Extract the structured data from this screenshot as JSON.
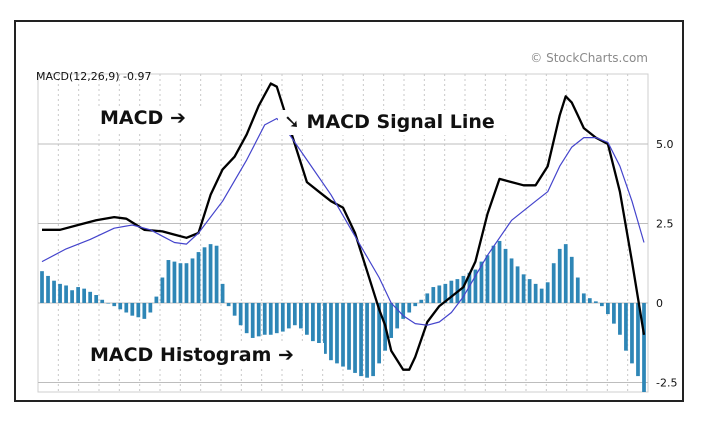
{
  "chart_data": {
    "type": "line",
    "header_label": "MACD(12,26,9) -0.97",
    "credit": "© StockCharts.com",
    "ylim": [
      -2.8,
      7.2
    ],
    "yticks": [
      {
        "value": 5.0,
        "label": "5.0"
      },
      {
        "value": 2.5,
        "label": "2.5"
      },
      {
        "value": 0,
        "label": "0"
      },
      {
        "value": -2.5,
        "label": "-2.5"
      }
    ],
    "grid": true,
    "num_periods": 100,
    "annotations": [
      {
        "key": "macd",
        "text": "MACD ➔"
      },
      {
        "key": "signal",
        "text": "➘ MACD Signal Line"
      },
      {
        "key": "histogram",
        "text": "MACD Histogram ➔"
      }
    ],
    "series": [
      {
        "name": "MACD",
        "color": "#000000",
        "points": [
          [
            0,
            2.3
          ],
          [
            3,
            2.3
          ],
          [
            6,
            2.45
          ],
          [
            9,
            2.6
          ],
          [
            12,
            2.7
          ],
          [
            14,
            2.65
          ],
          [
            17,
            2.3
          ],
          [
            20,
            2.25
          ],
          [
            22,
            2.15
          ],
          [
            24,
            2.05
          ],
          [
            26,
            2.2
          ],
          [
            28,
            3.4
          ],
          [
            30,
            4.2
          ],
          [
            32,
            4.6
          ],
          [
            34,
            5.3
          ],
          [
            36,
            6.2
          ],
          [
            38,
            6.9
          ],
          [
            39,
            6.8
          ],
          [
            40,
            6.2
          ],
          [
            42,
            5.0
          ],
          [
            44,
            3.8
          ],
          [
            46,
            3.5
          ],
          [
            48,
            3.2
          ],
          [
            50,
            3.0
          ],
          [
            52,
            2.2
          ],
          [
            54,
            1.0
          ],
          [
            56,
            -0.2
          ],
          [
            57,
            -0.7
          ],
          [
            58,
            -1.5
          ],
          [
            60,
            -2.1
          ],
          [
            61,
            -2.1
          ],
          [
            62,
            -1.7
          ],
          [
            64,
            -0.6
          ],
          [
            66,
            -0.1
          ],
          [
            68,
            0.2
          ],
          [
            70,
            0.5
          ],
          [
            72,
            1.3
          ],
          [
            74,
            2.8
          ],
          [
            76,
            3.9
          ],
          [
            78,
            3.8
          ],
          [
            80,
            3.7
          ],
          [
            82,
            3.7
          ],
          [
            84,
            4.3
          ],
          [
            86,
            5.9
          ],
          [
            87,
            6.5
          ],
          [
            88,
            6.3
          ],
          [
            89,
            5.9
          ],
          [
            90,
            5.5
          ],
          [
            92,
            5.2
          ],
          [
            94,
            5.0
          ],
          [
            96,
            3.5
          ],
          [
            98,
            1.3
          ],
          [
            100,
            -1.0
          ]
        ]
      },
      {
        "name": "MACD Signal Line",
        "color": "#4444cc",
        "points": [
          [
            0,
            1.3
          ],
          [
            4,
            1.7
          ],
          [
            8,
            2.0
          ],
          [
            12,
            2.35
          ],
          [
            15,
            2.45
          ],
          [
            18,
            2.3
          ],
          [
            20,
            2.1
          ],
          [
            22,
            1.9
          ],
          [
            24,
            1.85
          ],
          [
            26,
            2.2
          ],
          [
            30,
            3.2
          ],
          [
            34,
            4.5
          ],
          [
            37,
            5.6
          ],
          [
            39,
            5.8
          ],
          [
            40,
            5.6
          ],
          [
            44,
            4.5
          ],
          [
            48,
            3.4
          ],
          [
            52,
            2.1
          ],
          [
            56,
            0.8
          ],
          [
            58,
            0.0
          ],
          [
            60,
            -0.4
          ],
          [
            62,
            -0.65
          ],
          [
            64,
            -0.7
          ],
          [
            66,
            -0.6
          ],
          [
            68,
            -0.3
          ],
          [
            70,
            0.2
          ],
          [
            74,
            1.5
          ],
          [
            78,
            2.6
          ],
          [
            82,
            3.2
          ],
          [
            84,
            3.5
          ],
          [
            86,
            4.3
          ],
          [
            88,
            4.9
          ],
          [
            90,
            5.2
          ],
          [
            92,
            5.2
          ],
          [
            94,
            5.05
          ],
          [
            96,
            4.3
          ],
          [
            98,
            3.2
          ],
          [
            100,
            1.9
          ]
        ]
      },
      {
        "name": "MACD Histogram",
        "color": "#2e86b6",
        "values": [
          1.0,
          0.85,
          0.7,
          0.6,
          0.55,
          0.4,
          0.5,
          0.45,
          0.35,
          0.25,
          0.1,
          0.0,
          -0.1,
          -0.2,
          -0.3,
          -0.4,
          -0.45,
          -0.5,
          -0.3,
          0.2,
          0.8,
          1.35,
          1.3,
          1.25,
          1.25,
          1.4,
          1.6,
          1.75,
          1.85,
          1.8,
          0.6,
          -0.1,
          -0.4,
          -0.7,
          -0.95,
          -1.1,
          -1.05,
          -1.0,
          -1.0,
          -0.95,
          -0.9,
          -0.8,
          -0.7,
          -0.8,
          -1.0,
          -1.2,
          -1.45,
          -1.6,
          -1.8,
          -1.9,
          -2.0,
          -2.1,
          -2.2,
          -2.3,
          -2.35,
          -2.3,
          -1.9,
          -1.5,
          -1.1,
          -0.8,
          -0.5,
          -0.3,
          -0.1,
          0.1,
          0.3,
          0.5,
          0.55,
          0.6,
          0.7,
          0.75,
          0.85,
          0.95,
          1.05,
          1.3,
          1.5,
          1.8,
          1.95,
          1.7,
          1.4,
          1.15,
          0.9,
          0.75,
          0.6,
          0.45,
          0.65,
          1.25,
          1.7,
          1.85,
          1.45,
          0.8,
          0.3,
          0.15,
          0.05,
          -0.1,
          -0.35,
          -0.65,
          -1.0,
          -1.5,
          -1.9,
          -2.3,
          -2.8
        ]
      }
    ]
  }
}
